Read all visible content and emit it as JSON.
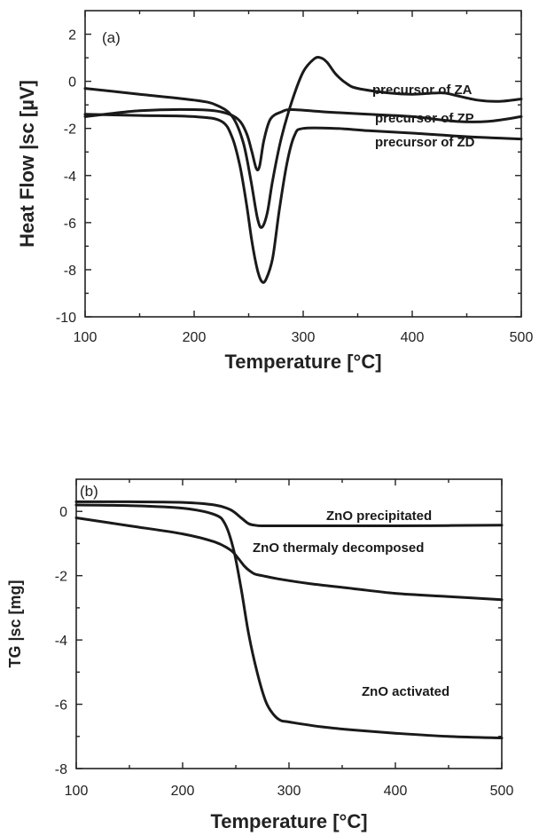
{
  "chart_data": [
    {
      "type": "line",
      "panel_label": "(a)",
      "xlabel": "Temperature [°C]",
      "ylabel": "Heat Flow |sc [µV]",
      "xlim": [
        100,
        500
      ],
      "ylim": [
        -10,
        3
      ],
      "xticks": [
        100,
        200,
        300,
        400,
        500
      ],
      "xtick_labels": [
        "100",
        "200",
        "300",
        "400",
        "500"
      ],
      "yticks": [
        -10,
        -8,
        -6,
        -4,
        -2,
        0,
        2
      ],
      "ytick_labels": [
        "-10",
        "-8",
        "-6",
        "-4",
        "-2",
        "0",
        "2"
      ],
      "grid": false,
      "series": [
        {
          "name": "precursor of ZA",
          "x": [
            100,
            150,
            200,
            220,
            235,
            245,
            252,
            258,
            262,
            267,
            272,
            280,
            290,
            300,
            310,
            316,
            322,
            330,
            340,
            350,
            380,
            400,
            420,
            430,
            440,
            460,
            480,
            500
          ],
          "y": [
            -0.3,
            -0.55,
            -0.8,
            -1.0,
            -1.5,
            -2.6,
            -4.2,
            -5.8,
            -6.2,
            -5.6,
            -4.2,
            -2.4,
            -0.8,
            0.4,
            0.95,
            1.0,
            0.8,
            0.3,
            -0.1,
            -0.3,
            -0.5,
            -0.55,
            -0.5,
            -0.5,
            -0.6,
            -0.8,
            -0.85,
            -0.75
          ]
        },
        {
          "name": "precursor of ZP",
          "x": [
            100,
            150,
            200,
            225,
            240,
            248,
            253,
            257,
            260,
            264,
            270,
            280,
            290,
            320,
            360,
            400,
            440,
            470,
            500
          ],
          "y": [
            -1.5,
            -1.25,
            -1.2,
            -1.3,
            -1.6,
            -2.2,
            -3.0,
            -3.7,
            -3.6,
            -2.5,
            -1.6,
            -1.3,
            -1.2,
            -1.3,
            -1.4,
            -1.5,
            -1.7,
            -1.7,
            -1.5
          ]
        },
        {
          "name": "precursor of ZD",
          "x": [
            100,
            150,
            200,
            225,
            235,
            242,
            248,
            253,
            258,
            262,
            266,
            272,
            278,
            285,
            292,
            300,
            330,
            360,
            400,
            450,
            500
          ],
          "y": [
            -1.4,
            -1.45,
            -1.5,
            -1.7,
            -2.4,
            -3.6,
            -5.2,
            -6.8,
            -8.0,
            -8.5,
            -8.4,
            -7.5,
            -5.5,
            -3.5,
            -2.3,
            -2.0,
            -2.0,
            -2.1,
            -2.2,
            -2.35,
            -2.45
          ]
        }
      ],
      "annotations": [
        "precursor of ZA",
        "precursor of ZP",
        "precursor of ZD"
      ]
    },
    {
      "type": "line",
      "panel_label": "(b)",
      "xlabel": "Temperature [°C]",
      "ylabel": "TG |sc [mg]",
      "xlim": [
        100,
        500
      ],
      "ylim": [
        -8,
        1
      ],
      "xticks": [
        100,
        200,
        300,
        400,
        500
      ],
      "xtick_labels": [
        "100",
        "200",
        "300",
        "400",
        "500"
      ],
      "yticks": [
        -8,
        -6,
        -4,
        -2,
        0
      ],
      "ytick_labels": [
        "-8",
        "-6",
        "-4",
        "-2",
        "0"
      ],
      "grid": false,
      "series": [
        {
          "name": "ZnO precipitated",
          "x": [
            100,
            150,
            200,
            230,
            245,
            255,
            262,
            268,
            275,
            300,
            350,
            400,
            450,
            500
          ],
          "y": [
            0.3,
            0.3,
            0.28,
            0.2,
            0.05,
            -0.2,
            -0.38,
            -0.43,
            -0.45,
            -0.45,
            -0.45,
            -0.45,
            -0.44,
            -0.43
          ]
        },
        {
          "name": "ZnO thermaly decomposed",
          "x": [
            100,
            150,
            200,
            230,
            245,
            252,
            258,
            263,
            268,
            275,
            290,
            320,
            360,
            400,
            450,
            500
          ],
          "y": [
            -0.2,
            -0.45,
            -0.7,
            -0.95,
            -1.2,
            -1.45,
            -1.7,
            -1.85,
            -1.95,
            -2.0,
            -2.1,
            -2.25,
            -2.4,
            -2.55,
            -2.65,
            -2.75
          ]
        },
        {
          "name": "ZnO activated",
          "x": [
            100,
            150,
            200,
            230,
            240,
            248,
            255,
            262,
            270,
            278,
            285,
            292,
            300,
            330,
            360,
            400,
            450,
            500
          ],
          "y": [
            0.2,
            0.18,
            0.1,
            -0.1,
            -0.4,
            -1.2,
            -2.4,
            -3.8,
            -5.0,
            -5.9,
            -6.3,
            -6.5,
            -6.55,
            -6.7,
            -6.8,
            -6.9,
            -7.0,
            -7.05
          ]
        }
      ],
      "annotations": [
        "ZnO precipitated",
        "ZnO thermaly decomposed",
        "ZnO activated"
      ]
    }
  ]
}
